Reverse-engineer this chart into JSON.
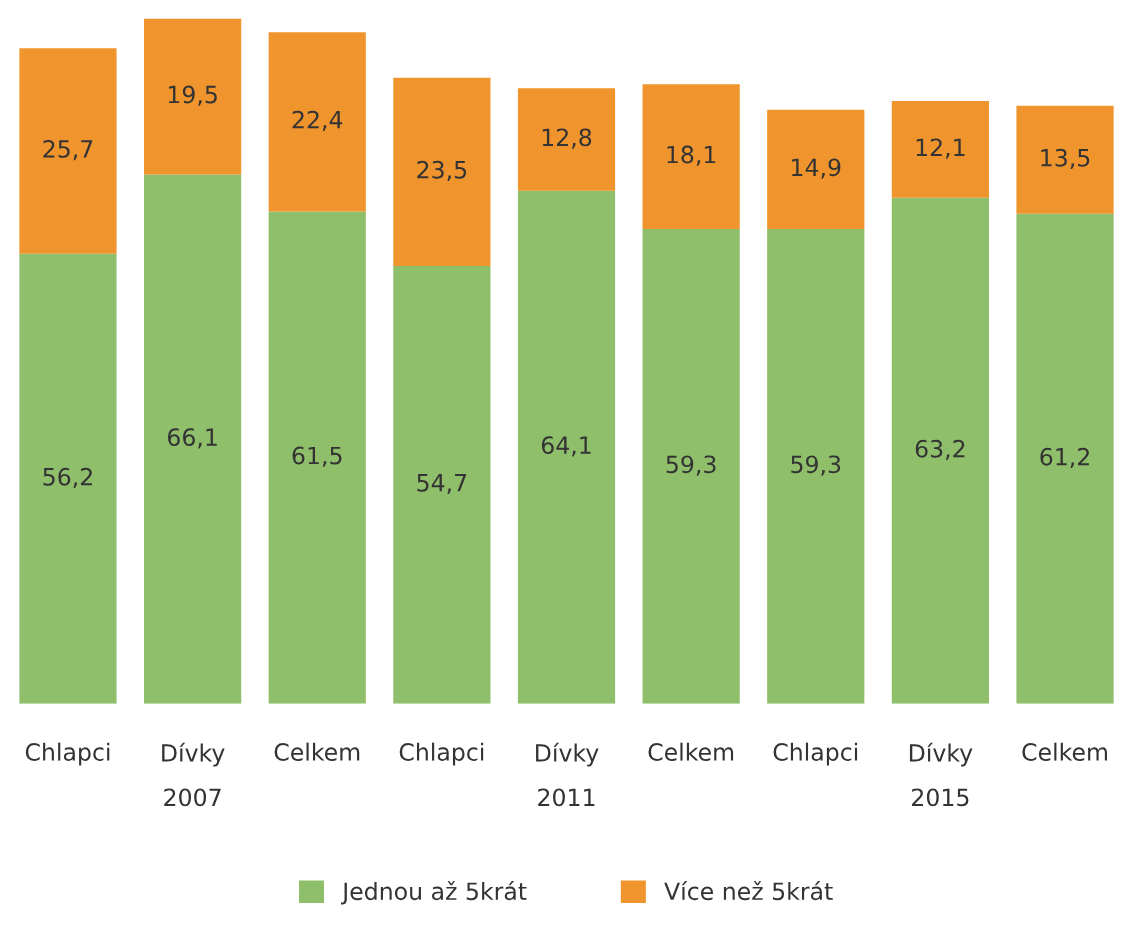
{
  "chart_data": {
    "type": "bar",
    "stacked": true,
    "legend": "bottom",
    "grid": false,
    "categories": [
      "Chlapci",
      "Dívky\n2007",
      "Celkem",
      "Chlapci",
      "Dívky\n2011",
      "Celkem",
      "Chlapci",
      "Dívky\n2015",
      "Celkem"
    ],
    "series": [
      {
        "name": "Jednou až 5krát",
        "color": "#8fbf6b",
        "values": [
          56.2,
          66.1,
          61.5,
          54.7,
          64.1,
          59.3,
          59.3,
          63.2,
          61.2
        ],
        "value_labels": [
          "56,2",
          "66,1",
          "61,5",
          "54,7",
          "64,1",
          "59,3",
          "59,3",
          "63,2",
          "61,2"
        ]
      },
      {
        "name": "Více než 5krát",
        "color": "#f0952d",
        "values": [
          25.7,
          19.5,
          22.4,
          23.5,
          12.8,
          18.1,
          14.9,
          12.1,
          13.5
        ],
        "value_labels": [
          "25,7",
          "19,5",
          "22,4",
          "23,5",
          "12,8",
          "18,1",
          "14,9",
          "12,1",
          "13,5"
        ]
      }
    ]
  }
}
